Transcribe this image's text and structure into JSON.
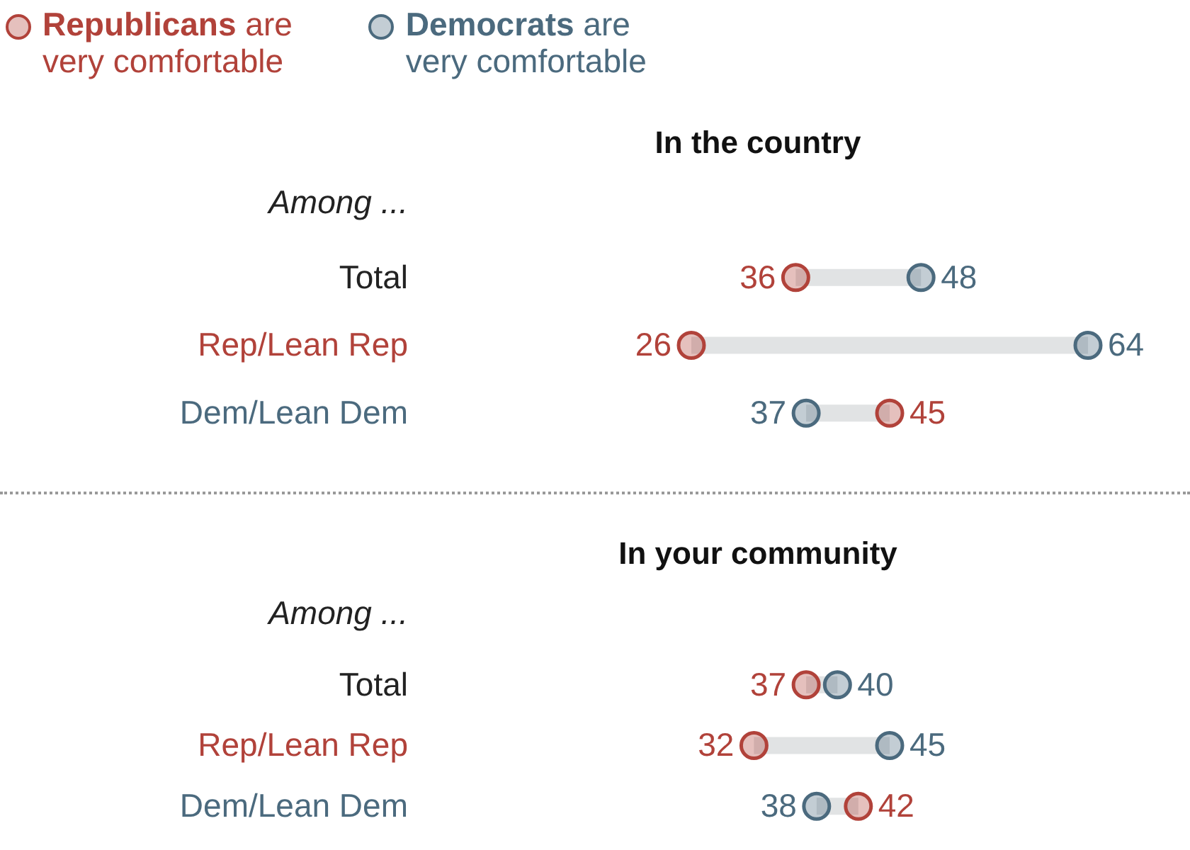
{
  "chart_data": [
    {
      "type": "scatter",
      "title": "In the country",
      "ylabel": "Among ...",
      "orientation": "horizontal",
      "categories": [
        "Total",
        "Rep/Lean Rep",
        "Dem/Lean Dem"
      ],
      "tick_labels": "y",
      "legend": "top left",
      "data_labels": true,
      "marker": "circle",
      "series": [
        {
          "name": "Republicans are very comfortable",
          "color": "#b1423a",
          "values": [
            36,
            26,
            45
          ]
        },
        {
          "name": "Democrats are very comfortable",
          "color": "#4b6a7e",
          "values": [
            48,
            64,
            37
          ]
        }
      ]
    },
    {
      "type": "scatter",
      "title": "In your community",
      "ylabel": "Among ...",
      "orientation": "horizontal",
      "categories": [
        "Total",
        "Rep/Lean Rep",
        "Dem/Lean Dem"
      ],
      "tick_labels": "y",
      "data_labels": true,
      "marker": "circle",
      "series": [
        {
          "color": "#b1423a",
          "values": [
            37,
            32,
            42
          ]
        },
        {
          "color": "#4b6a7e",
          "values": [
            40,
            45,
            38
          ]
        }
      ]
    }
  ]
}
